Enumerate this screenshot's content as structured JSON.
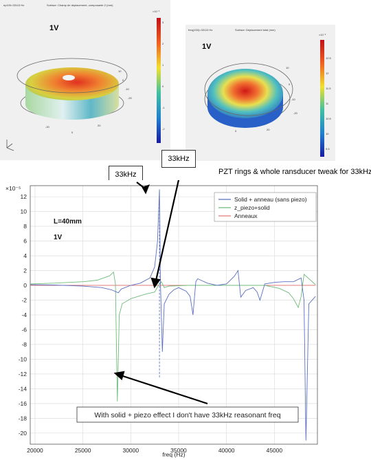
{
  "sim_left": {
    "header_left": "ep100=33113 Hz",
    "header_mid": "Surface: Champ de deplacement, composante Z (mm)",
    "scale_exp": "×10⁻³",
    "voltage": "1V",
    "scale_ticks": [
      "3",
      "2",
      "1",
      "0",
      "-1",
      "-2"
    ],
    "axis_ticks": [
      "10",
      "0",
      "-10",
      "-20",
      "-20",
      "0",
      "20"
    ]
  },
  "sim_right": {
    "header_left": "freq(100)=33113 Hz",
    "header_mid": "Surface: Deplacement total (mm)",
    "scale_exp": "×10⁻³",
    "voltage": "1V",
    "scale_ticks": [
      "12.5",
      "12",
      "11.5",
      "11",
      "10.5",
      "10",
      "9.5"
    ],
    "axis_ticks": [
      "10",
      "0",
      "-10",
      "-20",
      "0",
      "20"
    ]
  },
  "callouts": {
    "box_top": "33kHz",
    "box_peak": "33kHz",
    "note_right": "PZT rings & whole ransducer tweak for 33kHz",
    "note_bottom": "With solid + piezo effect I don't have 33kHz reasonant freq"
  },
  "chart_data": {
    "type": "line",
    "y_scale_exp": "×10⁻⁵",
    "xlabel": "freq (Hz)",
    "ylabel": "",
    "xlim": [
      19500,
      49500
    ],
    "ylim": [
      -21.5,
      13.5
    ],
    "x_ticks": [
      20000,
      25000,
      30000,
      35000,
      40000,
      45000
    ],
    "y_ticks": [
      12,
      10,
      8,
      6,
      4,
      2,
      0,
      -2,
      -4,
      -6,
      -8,
      -10,
      -12,
      -14,
      -16,
      -18,
      -20
    ],
    "grid": true,
    "legend": "top-right",
    "annotations": [
      "L=40mm",
      "1V"
    ],
    "marker_x": 33000,
    "series": [
      {
        "name": "Solid + anneau (sans piezo)",
        "color": "#5a6fbf",
        "x": [
          19500,
          22000,
          25000,
          27000,
          28000,
          28700,
          29000,
          30000,
          31000,
          32000,
          32500,
          32800,
          33000,
          33100,
          33300,
          33500,
          34000,
          34500,
          35000,
          35800,
          36200,
          36500,
          36800,
          37000,
          38000,
          39000,
          40000,
          40800,
          41200,
          41500,
          42000,
          42800,
          43200,
          43500,
          44000,
          45000,
          46000,
          47000,
          47800,
          48100,
          48300,
          48600,
          49300
        ],
        "y": [
          0.1,
          0.05,
          -0.1,
          -0.3,
          -0.6,
          -1.0,
          -0.5,
          0.0,
          0.3,
          1.0,
          2.5,
          6.0,
          13.0,
          0.5,
          -9.0,
          -2.5,
          -1.2,
          -0.6,
          -0.3,
          -0.8,
          -1.5,
          -4.0,
          0.5,
          0.9,
          0.3,
          0.0,
          0.2,
          1.2,
          2.0,
          -1.6,
          -0.7,
          -0.3,
          -0.9,
          -2.0,
          0.2,
          0.4,
          0.5,
          0.5,
          1.0,
          -2.0,
          -21.0,
          -2.5,
          -1.5
        ]
      },
      {
        "name": "z_piezo+solid",
        "color": "#6dbb7a",
        "x": [
          19500,
          22000,
          25000,
          26500,
          27800,
          28200,
          28400,
          28600,
          28800,
          29100,
          30000,
          31500,
          32500,
          32900,
          33200,
          33500,
          34000,
          36000,
          38000,
          40000,
          42000,
          44000,
          45500,
          46500,
          47000,
          47500,
          47800,
          48000,
          48100,
          49300
        ],
        "y": [
          0.2,
          0.3,
          0.5,
          0.7,
          1.3,
          1.8,
          0.2,
          -15.7,
          -4.0,
          -2.5,
          -1.8,
          -1.2,
          -0.9,
          0.0,
          0.5,
          -0.3,
          -0.1,
          0.0,
          0.0,
          0.0,
          0.0,
          0.0,
          -0.4,
          -1.0,
          -1.8,
          -3.0,
          -1.5,
          0.5,
          1.5,
          0.1
        ]
      },
      {
        "name": "Anneaux",
        "color": "#e07a7a",
        "x": [
          19500,
          49300
        ],
        "y": [
          0,
          0
        ]
      }
    ]
  }
}
